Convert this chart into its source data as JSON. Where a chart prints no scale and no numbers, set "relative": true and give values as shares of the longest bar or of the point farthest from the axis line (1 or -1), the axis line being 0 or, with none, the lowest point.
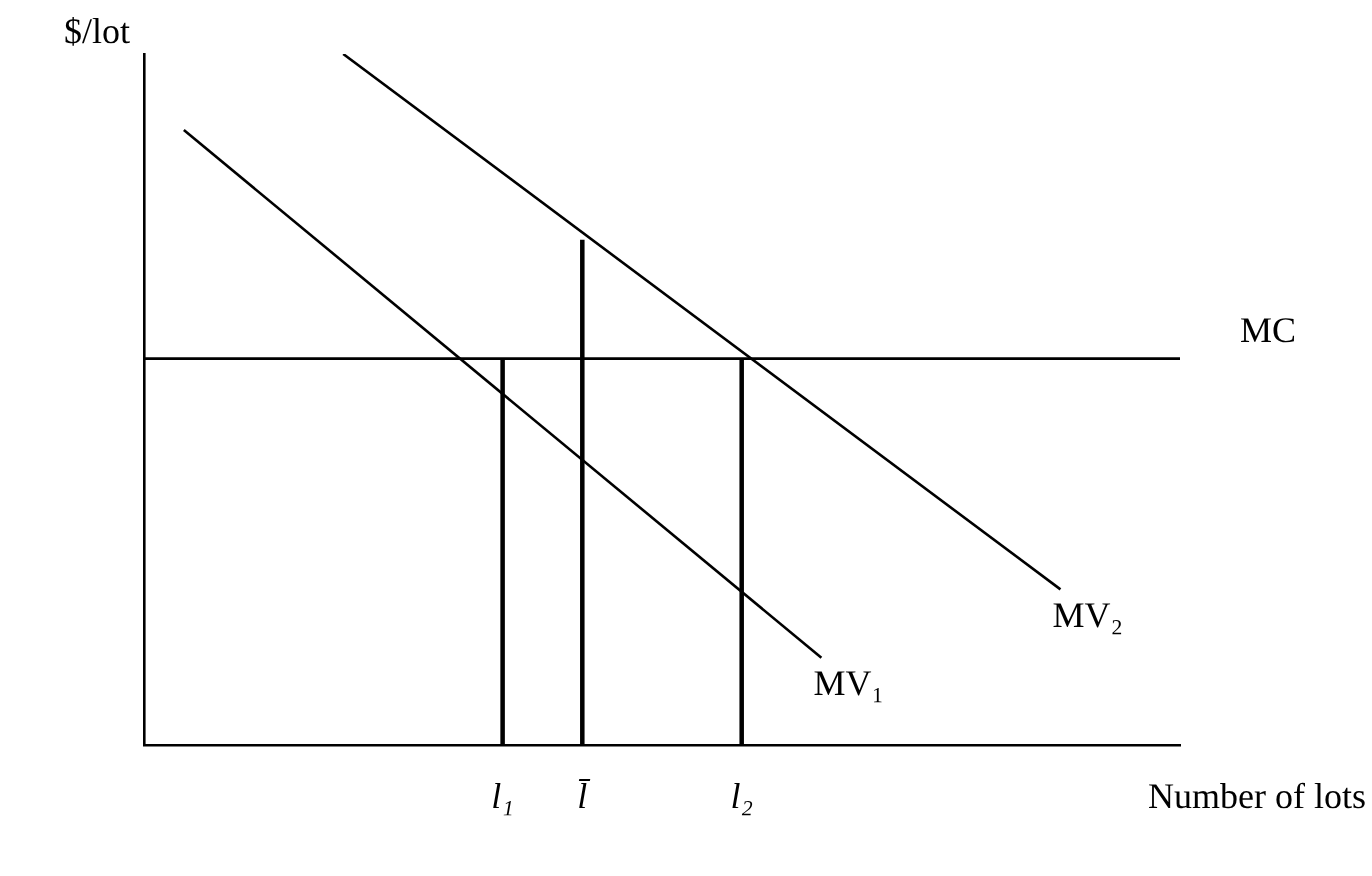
{
  "chart_data": {
    "type": "line",
    "relative": true,
    "xlabel": "Number of lots",
    "ylabel": "$/lot",
    "categories": [
      null,
      null,
      null,
      null,
      null,
      null,
      null,
      null,
      null,
      "l₁",
      null,
      "l̄",
      null,
      null,
      null,
      "l₂",
      null,
      null,
      null,
      null,
      null,
      null,
      null,
      null,
      null,
      null,
      null
    ],
    "grid": false,
    "legend": false,
    "marker": "none",
    "series": [
      {
        "name": "MV₁",
        "color": "#000000",
        "values": [
          null,
          0.89,
          null,
          null,
          null,
          null,
          null,
          null,
          null,
          null,
          null,
          null,
          null,
          null,
          null,
          null,
          null,
          0.126,
          null,
          null,
          null,
          null,
          null,
          null,
          null,
          null,
          null
        ],
        "line_style": "solid"
      },
      {
        "name": "MV₂",
        "color": "#000000",
        "values": [
          null,
          null,
          null,
          null,
          null,
          1,
          null,
          null,
          null,
          null,
          null,
          null,
          null,
          null,
          null,
          null,
          null,
          null,
          null,
          null,
          null,
          null,
          null,
          0.225,
          null,
          null,
          null
        ],
        "line_style": "solid"
      },
      {
        "name": "MC",
        "color": "#000000",
        "values": [
          0.559,
          null,
          null,
          null,
          null,
          null,
          null,
          null,
          null,
          null,
          null,
          null,
          null,
          null,
          null,
          null,
          null,
          null,
          null,
          null,
          null,
          null,
          null,
          null,
          null,
          null,
          0.559
        ],
        "line_style": "solid"
      },
      {
        "type": "bar",
        "color": "#000000",
        "values": [
          null,
          null,
          null,
          null,
          null,
          null,
          null,
          null,
          null,
          0.559,
          null,
          null,
          null,
          null,
          null,
          0.559,
          null,
          null,
          null,
          null,
          null,
          null,
          null,
          null,
          null,
          null,
          null
        ]
      },
      {
        "type": "bar",
        "color": "#000000",
        "values": [
          null,
          null,
          null,
          null,
          null,
          null,
          null,
          null,
          null,
          null,
          null,
          0.73,
          null,
          null,
          null,
          null,
          null,
          null,
          null,
          null,
          null,
          null,
          null,
          null,
          null,
          null,
          null
        ]
      }
    ]
  }
}
